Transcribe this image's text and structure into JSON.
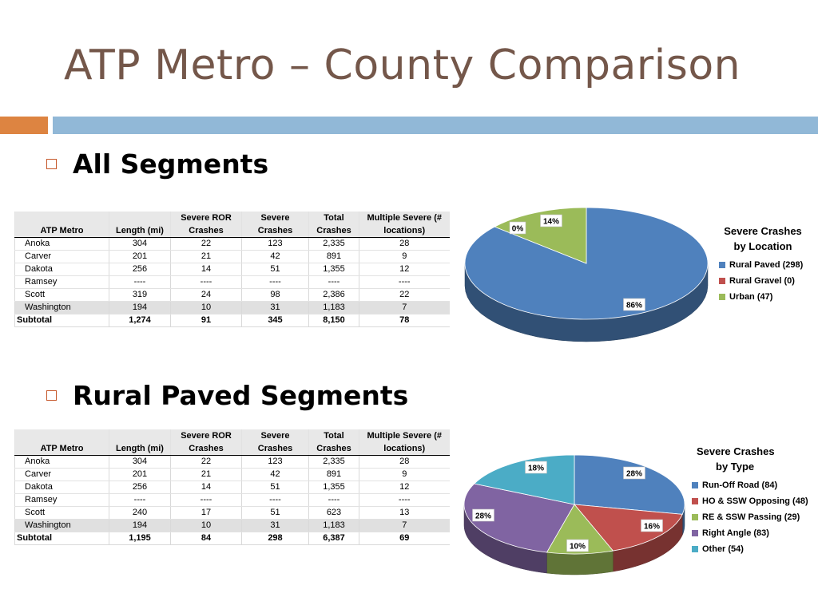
{
  "title": "ATP Metro – County Comparison",
  "sections": [
    {
      "heading": "All Segments"
    },
    {
      "heading": "Rural Paved Segments"
    }
  ],
  "table_headers": {
    "row1": [
      "",
      "",
      "Severe ROR",
      "Severe",
      "Total",
      "Multiple Severe (#"
    ],
    "row2": [
      "ATP Metro",
      "Length (mi)",
      "Crashes",
      "Crashes",
      "Crashes",
      "locations)"
    ]
  },
  "chart_data": [
    {
      "type": "table",
      "name": "All Segments",
      "columns": [
        "ATP Metro",
        "Length (mi)",
        "Severe ROR Crashes",
        "Severe Crashes",
        "Total Crashes",
        "Multiple Severe (# locations)"
      ],
      "rows": [
        [
          "Anoka",
          "304",
          "22",
          "123",
          "2,335",
          "28"
        ],
        [
          "Carver",
          "201",
          "21",
          "42",
          "891",
          "9"
        ],
        [
          "Dakota",
          "256",
          "14",
          "51",
          "1,355",
          "12"
        ],
        [
          "Ramsey",
          "----",
          "----",
          "----",
          "----",
          "----"
        ],
        [
          "Scott",
          "319",
          "24",
          "98",
          "2,386",
          "22"
        ],
        [
          "Washington",
          "194",
          "10",
          "31",
          "1,183",
          "7"
        ]
      ],
      "subtotal": [
        "Subtotal",
        "1,274",
        "91",
        "345",
        "8,150",
        "78"
      ]
    },
    {
      "type": "pie",
      "title": "Severe Crashes by Location",
      "title_lines": [
        "Severe Crashes",
        "by Location"
      ],
      "labels": [
        "Rural Paved (298)",
        "Rural Gravel (0)",
        "Urban (47)"
      ],
      "values": [
        298,
        0,
        47
      ],
      "percent_labels": [
        "86%",
        "0%",
        "14%"
      ],
      "colors": [
        "#4f81bd",
        "#c0504d",
        "#9bbb59"
      ]
    },
    {
      "type": "table",
      "name": "Rural Paved Segments",
      "columns": [
        "ATP Metro",
        "Length (mi)",
        "Severe ROR Crashes",
        "Severe Crashes",
        "Total Crashes",
        "Multiple Severe (# locations)"
      ],
      "rows": [
        [
          "Anoka",
          "304",
          "22",
          "123",
          "2,335",
          "28"
        ],
        [
          "Carver",
          "201",
          "21",
          "42",
          "891",
          "9"
        ],
        [
          "Dakota",
          "256",
          "14",
          "51",
          "1,355",
          "12"
        ],
        [
          "Ramsey",
          "----",
          "----",
          "----",
          "----",
          "----"
        ],
        [
          "Scott",
          "240",
          "17",
          "51",
          "623",
          "13"
        ],
        [
          "Washington",
          "194",
          "10",
          "31",
          "1,183",
          "7"
        ]
      ],
      "subtotal": [
        "Subtotal",
        "1,195",
        "84",
        "298",
        "6,387",
        "69"
      ]
    },
    {
      "type": "pie",
      "title": "Severe Crashes by Type",
      "title_lines": [
        "Severe Crashes",
        "by Type"
      ],
      "labels": [
        "Run-Off Road (84)",
        "HO & SSW Opposing (48)",
        "RE & SSW Passing (29)",
        "Right Angle (83)",
        "Other (54)"
      ],
      "values": [
        84,
        48,
        29,
        83,
        54
      ],
      "percent_labels": [
        "28%",
        "16%",
        "10%",
        "28%",
        "18%"
      ],
      "colors": [
        "#4f81bd",
        "#c0504d",
        "#9bbb59",
        "#8064a2",
        "#4bacc6"
      ]
    }
  ]
}
